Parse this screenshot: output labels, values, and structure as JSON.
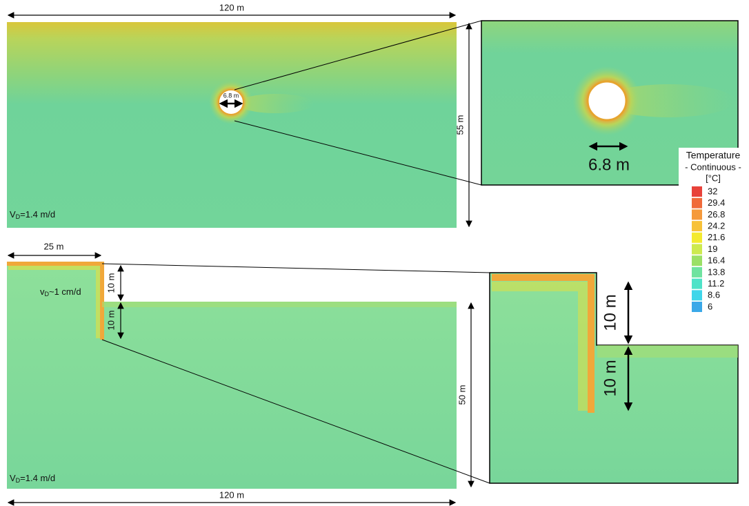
{
  "top_panel": {
    "width_label": "120 m",
    "height_label": "55 m",
    "diameter_label": "6.8 m",
    "velocity": {
      "symbol": "V",
      "subscript": "D",
      "text": "=1.4 m/d"
    }
  },
  "top_zoom": {
    "diameter_label": "6.8 m"
  },
  "bottom_panel": {
    "width_top_label": "25 m",
    "upper_depth_label": "10 m",
    "lower_depth_label": "10 m",
    "height_label": "50 m",
    "width_bottom_label": "120 m",
    "local_velocity": {
      "symbol": "v",
      "subscript": "D",
      "text": "~1 cm/d"
    },
    "velocity": {
      "symbol": "V",
      "subscript": "D",
      "text": "=1.4 m/d"
    }
  },
  "bottom_zoom": {
    "upper_depth_label": "10 m",
    "lower_depth_label": "10 m"
  },
  "legend": {
    "title": "Temperature",
    "subtitle": "- Continuous -",
    "unit": "[°C]",
    "items": [
      {
        "value": 32,
        "color": "#e8423a"
      },
      {
        "value": 29.4,
        "color": "#f06a3a"
      },
      {
        "value": 26.8,
        "color": "#f59a3c"
      },
      {
        "value": 24.2,
        "color": "#f7c138"
      },
      {
        "value": 21.6,
        "color": "#f3ea2e"
      },
      {
        "value": 19,
        "color": "#cdea4f"
      },
      {
        "value": 16.4,
        "color": "#9be066"
      },
      {
        "value": 13.8,
        "color": "#6fe3a0"
      },
      {
        "value": 11.2,
        "color": "#4ee3c8"
      },
      {
        "value": 8.6,
        "color": "#3fd6ea"
      },
      {
        "value": 6,
        "color": "#3aa8e8"
      }
    ]
  }
}
